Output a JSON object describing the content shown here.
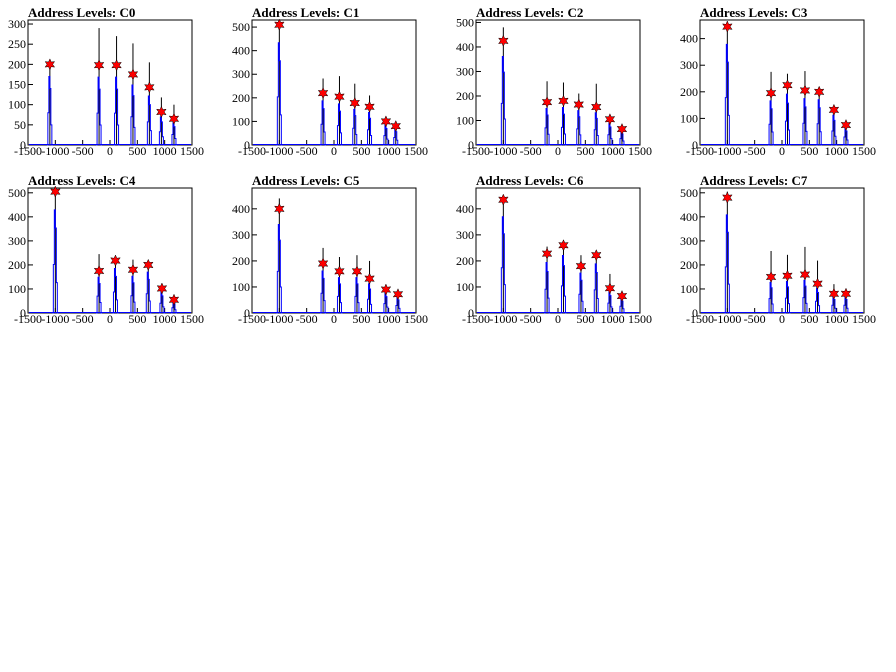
{
  "page": {
    "background": "#ffffff"
  },
  "style": {
    "line_color": "#0000ff",
    "peak_line_color": "#000000",
    "marker_color": "#ff0000"
  },
  "chart_data": [
    {
      "type": "histogram",
      "title": "Address Levels: C0",
      "xlim": [
        -1500,
        1500
      ],
      "ylim": [
        0,
        310
      ],
      "x_ticks": [
        -1500,
        -1000,
        -500,
        0,
        500,
        1000,
        1500
      ],
      "y_ticks": [
        0,
        50,
        100,
        150,
        200,
        250,
        300
      ],
      "peaks": [
        {
          "x": -1100,
          "y": 200,
          "max": 200
        },
        {
          "x": -200,
          "y": 198,
          "max": 290
        },
        {
          "x": 120,
          "y": 198,
          "max": 270
        },
        {
          "x": 420,
          "y": 175,
          "max": 252
        },
        {
          "x": 720,
          "y": 143,
          "max": 205
        },
        {
          "x": 940,
          "y": 82,
          "max": 118
        },
        {
          "x": 1170,
          "y": 65,
          "max": 100
        }
      ]
    },
    {
      "type": "histogram",
      "title": "Address Levels: C1",
      "xlim": [
        -1500,
        1500
      ],
      "ylim": [
        0,
        530
      ],
      "x_ticks": [
        -1500,
        -1000,
        -500,
        0,
        500,
        1000,
        1500
      ],
      "y_ticks": [
        0,
        100,
        200,
        300,
        400,
        500
      ],
      "peaks": [
        {
          "x": -1000,
          "y": 510,
          "max": 510
        },
        {
          "x": -200,
          "y": 220,
          "max": 282
        },
        {
          "x": 100,
          "y": 205,
          "max": 292
        },
        {
          "x": 380,
          "y": 178,
          "max": 260
        },
        {
          "x": 650,
          "y": 162,
          "max": 210
        },
        {
          "x": 950,
          "y": 100,
          "max": 118
        },
        {
          "x": 1130,
          "y": 80,
          "max": 90
        }
      ]
    },
    {
      "type": "histogram",
      "title": "Address Levels: C2",
      "xlim": [
        -1500,
        1500
      ],
      "ylim": [
        0,
        510
      ],
      "x_ticks": [
        -1500,
        -1000,
        -500,
        0,
        500,
        1000,
        1500
      ],
      "y_ticks": [
        0,
        100,
        200,
        300,
        400,
        500
      ],
      "peaks": [
        {
          "x": -1000,
          "y": 425,
          "max": 480
        },
        {
          "x": -200,
          "y": 175,
          "max": 260
        },
        {
          "x": 100,
          "y": 180,
          "max": 255
        },
        {
          "x": 380,
          "y": 165,
          "max": 210
        },
        {
          "x": 700,
          "y": 155,
          "max": 250
        },
        {
          "x": 950,
          "y": 105,
          "max": 115
        },
        {
          "x": 1170,
          "y": 65,
          "max": 75
        }
      ]
    },
    {
      "type": "histogram",
      "title": "Address Levels: C3",
      "xlim": [
        -1500,
        1500
      ],
      "ylim": [
        0,
        470
      ],
      "x_ticks": [
        -1500,
        -1000,
        -500,
        0,
        500,
        1000,
        1500
      ],
      "y_ticks": [
        0,
        100,
        200,
        300,
        400
      ],
      "peaks": [
        {
          "x": -1000,
          "y": 445,
          "max": 465
        },
        {
          "x": -200,
          "y": 195,
          "max": 275
        },
        {
          "x": 100,
          "y": 225,
          "max": 268
        },
        {
          "x": 420,
          "y": 205,
          "max": 278
        },
        {
          "x": 680,
          "y": 200,
          "max": 210
        },
        {
          "x": 950,
          "y": 132,
          "max": 140
        },
        {
          "x": 1170,
          "y": 75,
          "max": 90
        }
      ]
    },
    {
      "type": "histogram",
      "title": "Address Levels: C4",
      "xlim": [
        -1500,
        1500
      ],
      "ylim": [
        0,
        520
      ],
      "x_ticks": [
        -1500,
        -1000,
        -500,
        0,
        500,
        1000,
        1500
      ],
      "y_ticks": [
        0,
        100,
        200,
        300,
        400,
        500
      ],
      "peaks": [
        {
          "x": -1000,
          "y": 505,
          "max": 505
        },
        {
          "x": -200,
          "y": 175,
          "max": 245
        },
        {
          "x": 100,
          "y": 218,
          "max": 222
        },
        {
          "x": 420,
          "y": 180,
          "max": 222
        },
        {
          "x": 700,
          "y": 200,
          "max": 212
        },
        {
          "x": 950,
          "y": 102,
          "max": 110
        },
        {
          "x": 1170,
          "y": 55,
          "max": 72
        }
      ]
    },
    {
      "type": "histogram",
      "title": "Address Levels: C5",
      "xlim": [
        -1500,
        1500
      ],
      "ylim": [
        0,
        480
      ],
      "x_ticks": [
        -1500,
        -1000,
        -500,
        0,
        500,
        1000,
        1500
      ],
      "y_ticks": [
        0,
        100,
        200,
        300,
        400
      ],
      "peaks": [
        {
          "x": -1000,
          "y": 400,
          "max": 440
        },
        {
          "x": -200,
          "y": 190,
          "max": 250
        },
        {
          "x": 100,
          "y": 160,
          "max": 215
        },
        {
          "x": 420,
          "y": 160,
          "max": 222
        },
        {
          "x": 650,
          "y": 132,
          "max": 200
        },
        {
          "x": 950,
          "y": 90,
          "max": 100
        },
        {
          "x": 1170,
          "y": 72,
          "max": 80
        }
      ]
    },
    {
      "type": "histogram",
      "title": "Address Levels: C6",
      "xlim": [
        -1500,
        1500
      ],
      "ylim": [
        0,
        480
      ],
      "x_ticks": [
        -1500,
        -1000,
        -500,
        0,
        500,
        1000,
        1500
      ],
      "y_ticks": [
        0,
        100,
        200,
        300,
        400
      ],
      "peaks": [
        {
          "x": -1000,
          "y": 435,
          "max": 435
        },
        {
          "x": -200,
          "y": 228,
          "max": 255
        },
        {
          "x": 100,
          "y": 260,
          "max": 262
        },
        {
          "x": 420,
          "y": 180,
          "max": 222
        },
        {
          "x": 700,
          "y": 222,
          "max": 232
        },
        {
          "x": 950,
          "y": 95,
          "max": 150
        },
        {
          "x": 1170,
          "y": 65,
          "max": 75
        }
      ]
    },
    {
      "type": "histogram",
      "title": "Address Levels: C7",
      "xlim": [
        -1500,
        1500
      ],
      "ylim": [
        0,
        520
      ],
      "x_ticks": [
        -1500,
        -1000,
        -500,
        0,
        500,
        1000,
        1500
      ],
      "y_ticks": [
        0,
        100,
        200,
        300,
        400,
        500
      ],
      "peaks": [
        {
          "x": -1000,
          "y": 480,
          "max": 505
        },
        {
          "x": -200,
          "y": 150,
          "max": 258
        },
        {
          "x": 100,
          "y": 155,
          "max": 242
        },
        {
          "x": 420,
          "y": 160,
          "max": 275
        },
        {
          "x": 650,
          "y": 122,
          "max": 218
        },
        {
          "x": 950,
          "y": 80,
          "max": 120
        },
        {
          "x": 1170,
          "y": 80,
          "max": 88
        }
      ]
    }
  ]
}
